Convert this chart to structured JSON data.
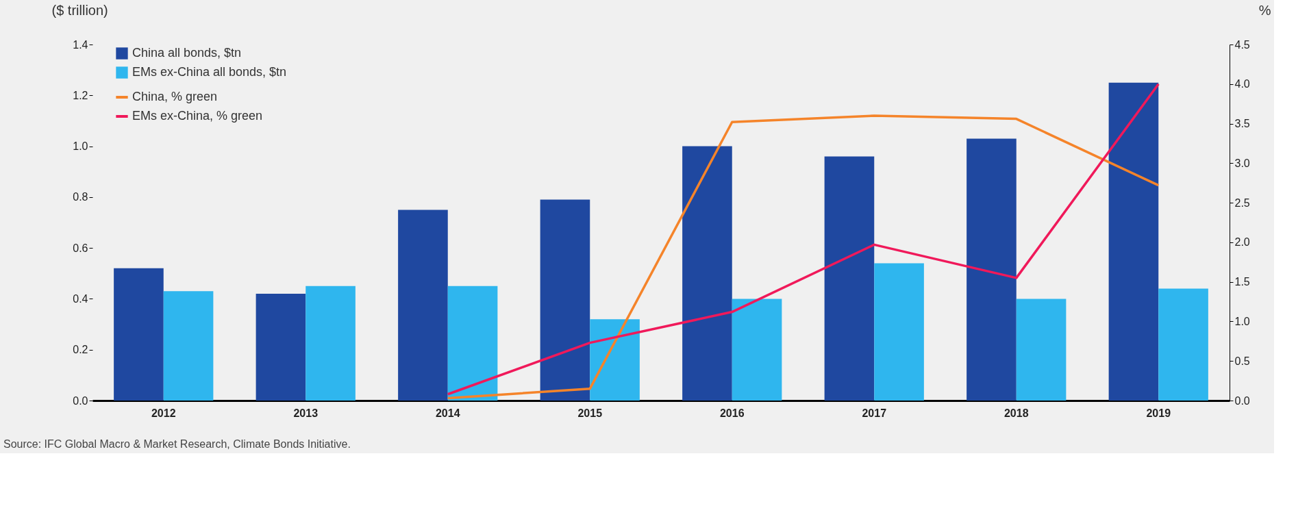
{
  "chart_data": {
    "type": "bar",
    "ylabel": "($ trillion)",
    "y2label": "%",
    "categories": [
      "2012",
      "2013",
      "2014",
      "2015",
      "2016",
      "2017",
      "2018",
      "2019"
    ],
    "series": [
      {
        "name": "China all bonds, $tn",
        "type": "bar",
        "color": "#1f48a0",
        "values": [
          0.52,
          0.42,
          0.75,
          0.79,
          1.0,
          0.96,
          1.03,
          1.25
        ]
      },
      {
        "name": "EMs ex-China all bonds, $tn",
        "type": "bar",
        "color": "#2fb6ee",
        "values": [
          0.43,
          0.45,
          0.45,
          0.32,
          0.4,
          0.54,
          0.4,
          0.44
        ]
      },
      {
        "name": "China, % green",
        "type": "line",
        "axis": "y2",
        "color": "#f5842a",
        "values": [
          null,
          null,
          0.03,
          0.15,
          3.52,
          3.6,
          3.56,
          2.72
        ]
      },
      {
        "name": "EMs ex-China, % green",
        "type": "line",
        "axis": "y2",
        "color": "#f0195a",
        "values": [
          null,
          null,
          0.08,
          0.73,
          1.12,
          1.97,
          1.55,
          4.0
        ]
      }
    ],
    "ylim": [
      0,
      1.4
    ],
    "yticks": [
      {
        "value": 0,
        "label": "0.0"
      },
      {
        "value": 0.2,
        "label": "0.2"
      },
      {
        "value": 0.4,
        "label": "0.4"
      },
      {
        "value": 0.6,
        "label": "0.6"
      },
      {
        "value": 0.8,
        "label": "0.8"
      },
      {
        "value": 1.0,
        "label": "1.0"
      },
      {
        "value": 1.2,
        "label": "1.2"
      },
      {
        "value": 1.4,
        "label": "1.4"
      }
    ],
    "y2lim": [
      0,
      4.5
    ],
    "y2ticks": [
      {
        "value": 0,
        "label": "0.0"
      },
      {
        "value": 0.5,
        "label": "0.5"
      },
      {
        "value": 1.0,
        "label": "1.0"
      },
      {
        "value": 1.5,
        "label": "1.5"
      },
      {
        "value": 2.0,
        "label": "2.0"
      },
      {
        "value": 2.5,
        "label": "2.5"
      },
      {
        "value": 3.0,
        "label": "3.0"
      },
      {
        "value": 3.5,
        "label": "3.5"
      },
      {
        "value": 4.0,
        "label": "4.0"
      },
      {
        "value": 4.5,
        "label": "4.5"
      }
    ],
    "legend": "top left",
    "grid": false,
    "annotations": [
      "Source: IFC Global Macro & Market Research, Climate Bonds Initiative."
    ]
  }
}
